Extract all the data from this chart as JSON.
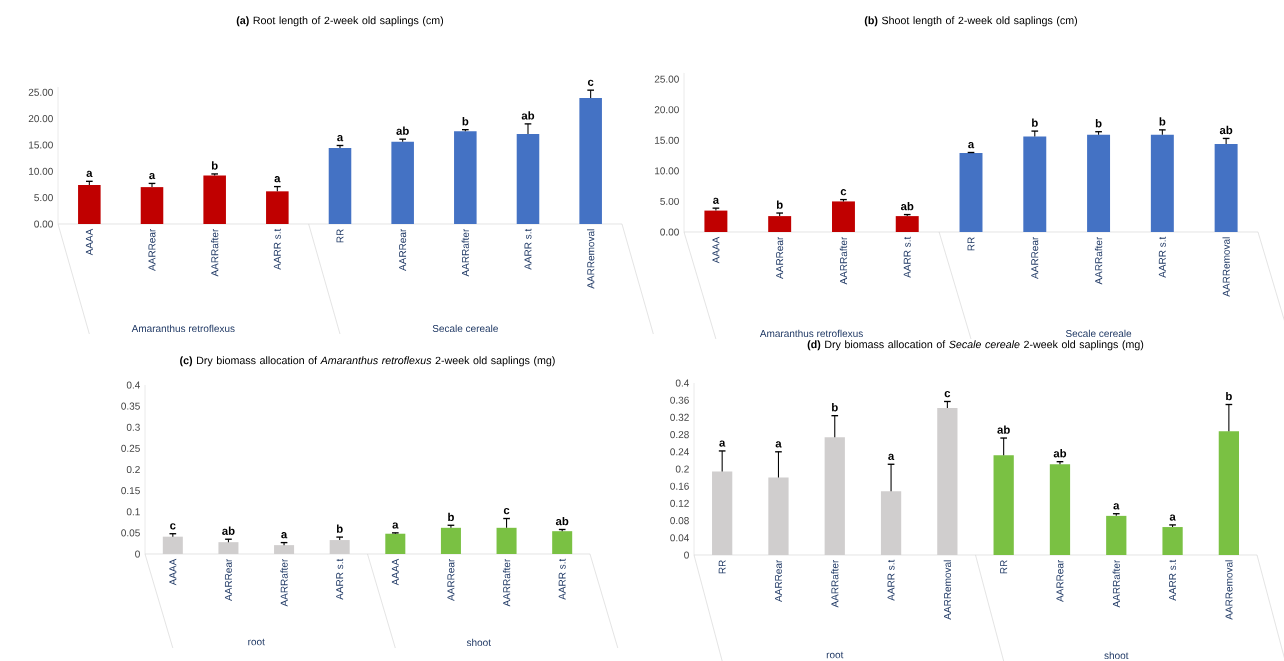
{
  "chart_data": [
    {
      "type": "bar",
      "title": "**(a)** Root length of 2-week old saplings (cm)",
      "categories": [
        "AAAA",
        "AARRear",
        "AARRafter",
        "AARR s.t",
        "RR",
        "AARRear",
        "AARRafter",
        "AARR s.t",
        "AARRemoval"
      ],
      "series": [
        {
          "color": "#c00000",
          "values": [
            7.4,
            7.0,
            9.2,
            6.2,
            null,
            null,
            null,
            null,
            null
          ],
          "errors": [
            0.7,
            0.7,
            0.3,
            0.9,
            null,
            null,
            null,
            null,
            null
          ],
          "value_labels": [
            "a",
            "a",
            "b",
            "a",
            null,
            null,
            null,
            null,
            null
          ]
        },
        {
          "color": "#4472c4",
          "values": [
            null,
            null,
            null,
            null,
            14.4,
            15.6,
            17.6,
            17.1,
            23.9
          ],
          "errors": [
            null,
            null,
            null,
            null,
            0.5,
            0.5,
            0.3,
            1.9,
            1.5
          ],
          "value_labels": [
            null,
            null,
            null,
            null,
            "a",
            "ab",
            "b",
            "ab",
            "c"
          ]
        }
      ],
      "ylim": [
        0,
        26
      ],
      "yticks": [
        {
          "value": 0,
          "label": "0.00"
        },
        {
          "value": 5,
          "label": "5.00"
        },
        {
          "value": 10,
          "label": "10.00"
        },
        {
          "value": 15,
          "label": "15.00"
        },
        {
          "value": 20,
          "label": "20.00"
        },
        {
          "value": 25,
          "label": "25.00"
        }
      ],
      "annotations": [
        "Amaranthus retroflexus",
        "Secale cereale"
      ]
    },
    {
      "type": "bar",
      "title": "**(b)** Shoot length of 2-week old saplings (cm)",
      "categories": [
        "AAAA",
        "AARRear",
        "AARRafter",
        "AARR s.t",
        "RR",
        "AARRear",
        "AARRafter",
        "AARR s.t",
        "AARRemoval"
      ],
      "series": [
        {
          "color": "#c00000",
          "values": [
            3.5,
            2.6,
            5.0,
            2.6,
            null,
            null,
            null,
            null,
            null
          ],
          "errors": [
            0.4,
            0.5,
            0.3,
            0.25,
            null,
            null,
            null,
            null,
            null
          ],
          "value_labels": [
            "a",
            "b",
            "c",
            "ab",
            null,
            null,
            null,
            null,
            null
          ]
        },
        {
          "color": "#4472c4",
          "values": [
            null,
            null,
            null,
            null,
            12.9,
            15.6,
            15.9,
            15.9,
            14.4
          ],
          "errors": [
            null,
            null,
            null,
            null,
            0.1,
            0.9,
            0.5,
            0.8,
            0.9
          ],
          "value_labels": [
            null,
            null,
            null,
            null,
            "a",
            "b",
            "b",
            "b",
            "ab"
          ]
        }
      ],
      "ylim": [
        0,
        26
      ],
      "yticks": [
        {
          "value": 0,
          "label": "0.00"
        },
        {
          "value": 5,
          "label": "5.00"
        },
        {
          "value": 10,
          "label": "10.00"
        },
        {
          "value": 15,
          "label": "15.00"
        },
        {
          "value": 20,
          "label": "20.00"
        },
        {
          "value": 25,
          "label": "25.00"
        }
      ],
      "annotations": [
        "Amaranthus retroflexus",
        "Secale cereale"
      ]
    },
    {
      "type": "bar",
      "title": "**(c)** Dry biomass allocation of *Amaranthus retroflexus* 2-week old saplings (mg)",
      "categories": [
        "AAAA",
        "AARRear",
        "AARRafter",
        "AARR s.t",
        "AAAA",
        "AARRear",
        "AARRafter",
        "AARR s.t"
      ],
      "series": [
        {
          "color": "#d0cece",
          "values": [
            0.041,
            0.028,
            0.021,
            0.033,
            null,
            null,
            null,
            null
          ],
          "errors": [
            0.007,
            0.007,
            0.006,
            0.007,
            null,
            null,
            null,
            null
          ],
          "value_labels": [
            "c",
            "ab",
            "a",
            "b",
            null,
            null,
            null,
            null
          ]
        },
        {
          "color": "#7ac143",
          "values": [
            null,
            null,
            null,
            null,
            0.048,
            0.062,
            0.062,
            0.054
          ],
          "errors": [
            null,
            null,
            null,
            null,
            0.002,
            0.006,
            0.022,
            0.004
          ],
          "value_labels": [
            null,
            null,
            null,
            null,
            "a",
            "b",
            "c",
            "ab"
          ]
        }
      ],
      "ylim": [
        0,
        0.4
      ],
      "yticks": [
        0,
        0.05,
        0.1,
        0.15,
        0.2,
        0.25,
        0.3,
        0.35,
        0.4
      ],
      "annotations": [
        "root",
        "shoot"
      ]
    },
    {
      "type": "bar",
      "title": "**(d)** Dry biomass allocation of *Secale cereale* 2-week old saplings (mg)",
      "categories": [
        "RR",
        "AARRear",
        "AARRafter",
        "AARR s.t",
        "AARRemoval",
        "RR",
        "AARRear",
        "AARRafter",
        "AARR s.t",
        "AARRemoval"
      ],
      "series": [
        {
          "color": "#d0cece",
          "values": [
            0.194,
            0.18,
            0.274,
            0.148,
            0.342,
            null,
            null,
            null,
            null,
            null
          ],
          "errors": [
            0.048,
            0.06,
            0.05,
            0.063,
            0.015,
            null,
            null,
            null,
            null,
            null
          ],
          "value_labels": [
            "a",
            "a",
            "b",
            "a",
            "c",
            null,
            null,
            null,
            null,
            null
          ]
        },
        {
          "color": "#7ac143",
          "values": [
            null,
            null,
            null,
            null,
            null,
            0.232,
            0.211,
            0.091,
            0.065,
            0.288
          ],
          "errors": [
            null,
            null,
            null,
            null,
            null,
            0.04,
            0.006,
            0.005,
            0.005,
            0.062
          ],
          "value_labels": [
            null,
            null,
            null,
            null,
            null,
            "ab",
            "ab",
            "a",
            "a",
            "b"
          ]
        }
      ],
      "ylim": [
        0,
        0.4
      ],
      "yticks": [
        0,
        0.04,
        0.08,
        0.12,
        0.16,
        0.2,
        0.24,
        0.28,
        0.32,
        0.36,
        0.4
      ],
      "annotations": [
        "root",
        "shoot"
      ]
    }
  ]
}
